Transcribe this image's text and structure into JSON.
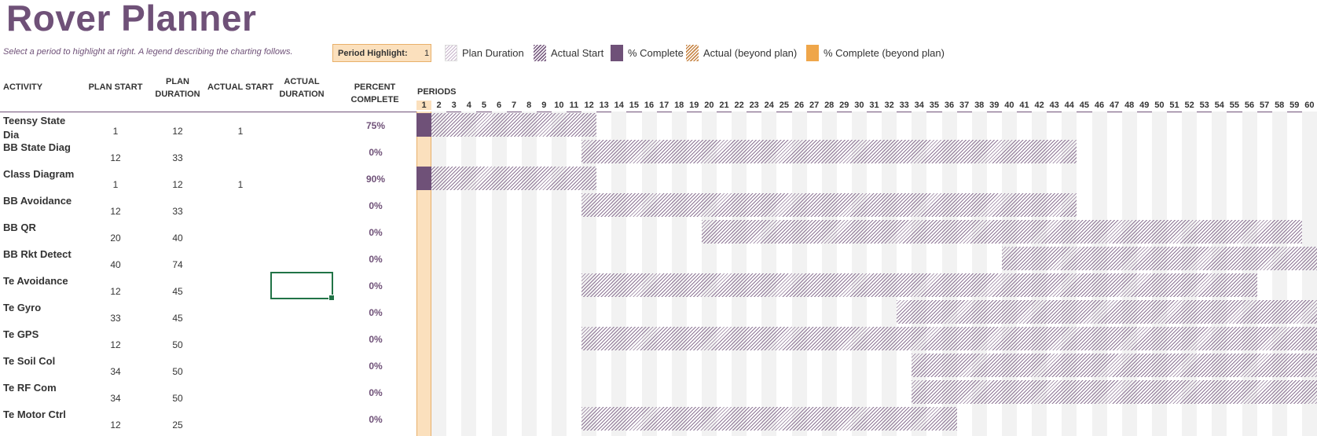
{
  "title": "Rover Planner",
  "subtitle": "Select a period to highlight at right.  A legend describing the charting follows.",
  "period_highlight": {
    "label": "Period Highlight:",
    "value": "1"
  },
  "legend": [
    {
      "label": "Plan Duration",
      "icon": "plan-duration-swatch"
    },
    {
      "label": "Actual Start",
      "icon": "actual-start-swatch"
    },
    {
      "label": "% Complete",
      "icon": "percent-complete-swatch"
    },
    {
      "label": "Actual (beyond plan)",
      "icon": "actual-beyond-plan-swatch"
    },
    {
      "label": "% Complete (beyond plan)",
      "icon": "percent-complete-beyond-swatch"
    }
  ],
  "headers": {
    "activity": "ACTIVITY",
    "plan_start": "PLAN START",
    "plan_duration": "PLAN DURATION",
    "actual_start": "ACTUAL START",
    "actual_duration": "ACTUAL DURATION",
    "percent_complete": "PERCENT COMPLETE",
    "periods": "PERIODS"
  },
  "activities": [
    {
      "name": "Teensy State Dia",
      "plan_start": "1",
      "plan_duration": "12",
      "actual_start": "1",
      "actual_duration": "",
      "percent": "75%"
    },
    {
      "name": "BB State Diag",
      "plan_start": "12",
      "plan_duration": "33",
      "actual_start": "",
      "actual_duration": "",
      "percent": "0%"
    },
    {
      "name": "Class Diagram",
      "plan_start": "1",
      "plan_duration": "12",
      "actual_start": "1",
      "actual_duration": "",
      "percent": "90%"
    },
    {
      "name": "BB Avoidance",
      "plan_start": "12",
      "plan_duration": "33",
      "actual_start": "",
      "actual_duration": "",
      "percent": "0%"
    },
    {
      "name": "BB QR",
      "plan_start": "20",
      "plan_duration": "40",
      "actual_start": "",
      "actual_duration": "",
      "percent": "0%"
    },
    {
      "name": "BB Rkt Detect",
      "plan_start": "40",
      "plan_duration": "74",
      "actual_start": "",
      "actual_duration": "",
      "percent": "0%"
    },
    {
      "name": "Te Avoidance",
      "plan_start": "12",
      "plan_duration": "45",
      "actual_start": "",
      "actual_duration": "",
      "percent": "0%"
    },
    {
      "name": "Te Gyro",
      "plan_start": "33",
      "plan_duration": "45",
      "actual_start": "",
      "actual_duration": "",
      "percent": "0%"
    },
    {
      "name": "Te GPS",
      "plan_start": "12",
      "plan_duration": "50",
      "actual_start": "",
      "actual_duration": "",
      "percent": "0%"
    },
    {
      "name": "Te Soil Col",
      "plan_start": "34",
      "plan_duration": "50",
      "actual_start": "",
      "actual_duration": "",
      "percent": "0%"
    },
    {
      "name": "Te RF Com",
      "plan_start": "34",
      "plan_duration": "50",
      "actual_start": "",
      "actual_duration": "",
      "percent": "0%"
    },
    {
      "name": "Te Motor Ctrl",
      "plan_start": "12",
      "plan_duration": "25",
      "actual_start": "",
      "actual_duration": "",
      "percent": "0%"
    }
  ],
  "period_count": 60,
  "colors": {
    "accent": "#6f5178",
    "highlight": "#fbe0bd",
    "highlight_border": "#e8b06a",
    "selection": "#217346"
  }
}
